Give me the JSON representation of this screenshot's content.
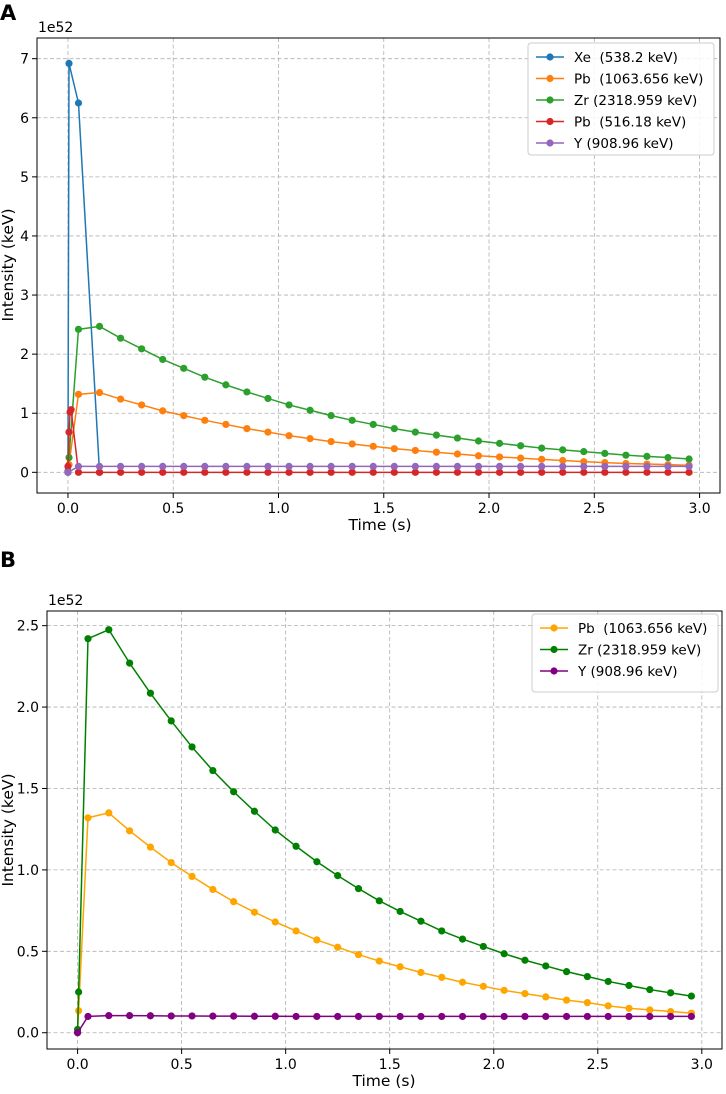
{
  "chart_data": [
    {
      "panel_label": "A",
      "type": "line",
      "marker": "circle",
      "xlabel": "Time (s)",
      "ylabel": "Intensity (keV)",
      "y_offset_text": "1e52",
      "y_scale": 1e+52,
      "xlim": [
        -0.147,
        3.097
      ],
      "ylim": [
        -0.35,
        7.35
      ],
      "xticks": [
        0.0,
        0.5,
        1.0,
        1.5,
        2.0,
        2.5,
        3.0
      ],
      "xtick_labels": [
        "0.0",
        "0.5",
        "1.0",
        "1.5",
        "2.0",
        "2.5",
        "3.0"
      ],
      "yticks": [
        0,
        1,
        2,
        3,
        4,
        5,
        6,
        7
      ],
      "ytick_labels": [
        "0",
        "1",
        "2",
        "3",
        "4",
        "5",
        "6",
        "7"
      ],
      "grid": true,
      "legend_position": "top-right",
      "series": [
        {
          "name": "Xe  (538.2 keV)",
          "color": "#1f77b4",
          "x": [
            0,
            0.005,
            0.05,
            0.15
          ],
          "y": [
            0.02,
            6.92,
            6.25,
            0.0
          ]
        },
        {
          "name": "Pb  (1063.656 keV)",
          "color": "#ff7f0e",
          "x": [
            0,
            0.005,
            0.05,
            0.15,
            0.25,
            0.35,
            0.45,
            0.55,
            0.65,
            0.75,
            0.85,
            0.95,
            1.05,
            1.15,
            1.25,
            1.35,
            1.45,
            1.55,
            1.65,
            1.75,
            1.85,
            1.95,
            2.05,
            2.15,
            2.25,
            2.35,
            2.45,
            2.55,
            2.65,
            2.75,
            2.85,
            2.95
          ],
          "y": [
            0.0,
            0.13,
            1.32,
            1.35,
            1.24,
            1.14,
            1.04,
            0.96,
            0.88,
            0.81,
            0.74,
            0.68,
            0.62,
            0.57,
            0.52,
            0.48,
            0.44,
            0.4,
            0.37,
            0.34,
            0.31,
            0.28,
            0.26,
            0.24,
            0.22,
            0.2,
            0.18,
            0.165,
            0.15,
            0.14,
            0.13,
            0.12
          ]
        },
        {
          "name": "Zr (2318.959 keV)",
          "color": "#2ca02c",
          "x": [
            0,
            0.005,
            0.05,
            0.15,
            0.25,
            0.35,
            0.45,
            0.55,
            0.65,
            0.75,
            0.85,
            0.95,
            1.05,
            1.15,
            1.25,
            1.35,
            1.45,
            1.55,
            1.65,
            1.75,
            1.85,
            1.95,
            2.05,
            2.15,
            2.25,
            2.35,
            2.45,
            2.55,
            2.65,
            2.75,
            2.85,
            2.95
          ],
          "y": [
            0.0,
            0.25,
            2.42,
            2.47,
            2.27,
            2.09,
            1.91,
            1.76,
            1.61,
            1.48,
            1.36,
            1.25,
            1.14,
            1.05,
            0.96,
            0.88,
            0.81,
            0.74,
            0.68,
            0.63,
            0.58,
            0.53,
            0.49,
            0.45,
            0.41,
            0.38,
            0.35,
            0.32,
            0.29,
            0.27,
            0.25,
            0.225
          ]
        },
        {
          "name": "Pb  (516.18 keV)",
          "color": "#d62728",
          "x": [
            0,
            0.005,
            0.01,
            0.015,
            0.05,
            0.15,
            0.25,
            0.35,
            0.45,
            0.55,
            0.65,
            0.75,
            0.85,
            0.95,
            1.05,
            1.15,
            1.25,
            1.35,
            1.45,
            1.55,
            1.65,
            1.75,
            1.85,
            1.95,
            2.05,
            2.15,
            2.25,
            2.35,
            2.45,
            2.55,
            2.65,
            2.75,
            2.85,
            2.95
          ],
          "y": [
            0.1,
            0.68,
            1.02,
            1.06,
            0.0,
            0.0,
            0.0,
            0.0,
            0.0,
            0.0,
            0.0,
            0.0,
            0.0,
            0.0,
            0.0,
            0.0,
            0.0,
            0.0,
            0.0,
            0.0,
            0.0,
            0.0,
            0.0,
            0.0,
            0.0,
            0.0,
            0.0,
            0.0,
            0.0,
            0.0,
            0.0,
            0.0,
            0.0,
            0.0
          ]
        },
        {
          "name": "Y (908.96 keV)",
          "color": "#9467bd",
          "x": [
            0,
            0.05,
            0.15,
            0.25,
            0.35,
            0.45,
            0.55,
            0.65,
            0.75,
            0.85,
            0.95,
            1.05,
            1.15,
            1.25,
            1.35,
            1.45,
            1.55,
            1.65,
            1.75,
            1.85,
            1.95,
            2.05,
            2.15,
            2.25,
            2.35,
            2.45,
            2.55,
            2.65,
            2.75,
            2.85,
            2.95
          ],
          "y": [
            0.0,
            0.1,
            0.1,
            0.1,
            0.1,
            0.1,
            0.1,
            0.1,
            0.1,
            0.1,
            0.1,
            0.1,
            0.1,
            0.1,
            0.1,
            0.1,
            0.1,
            0.1,
            0.1,
            0.1,
            0.1,
            0.1,
            0.1,
            0.1,
            0.1,
            0.1,
            0.1,
            0.1,
            0.1,
            0.1,
            0.1
          ]
        }
      ]
    },
    {
      "panel_label": "B",
      "type": "line",
      "marker": "circle",
      "xlabel": "Time (s)",
      "ylabel": "Intensity (keV)",
      "y_offset_text": "1e52",
      "y_scale": 1e+52,
      "xlim": [
        -0.147,
        3.097
      ],
      "ylim": [
        -0.1,
        2.59
      ],
      "xticks": [
        0.0,
        0.5,
        1.0,
        1.5,
        2.0,
        2.5,
        3.0
      ],
      "xtick_labels": [
        "0.0",
        "0.5",
        "1.0",
        "1.5",
        "2.0",
        "2.5",
        "3.0"
      ],
      "yticks": [
        0.0,
        0.5,
        1.0,
        1.5,
        2.0,
        2.5
      ],
      "ytick_labels": [
        "0.0",
        "0.5",
        "1.0",
        "1.5",
        "2.0",
        "2.5"
      ],
      "grid": true,
      "legend_position": "top-right",
      "series": [
        {
          "name": "Pb  (1063.656 keV)",
          "color": "#ffa500",
          "x": [
            0,
            0.005,
            0.05,
            0.15,
            0.25,
            0.35,
            0.45,
            0.55,
            0.65,
            0.75,
            0.85,
            0.95,
            1.05,
            1.15,
            1.25,
            1.35,
            1.45,
            1.55,
            1.65,
            1.75,
            1.85,
            1.95,
            2.05,
            2.15,
            2.25,
            2.35,
            2.45,
            2.55,
            2.65,
            2.75,
            2.85,
            2.95
          ],
          "y": [
            0.0,
            0.135,
            1.32,
            1.35,
            1.24,
            1.14,
            1.045,
            0.96,
            0.88,
            0.805,
            0.74,
            0.68,
            0.625,
            0.57,
            0.525,
            0.48,
            0.44,
            0.405,
            0.37,
            0.34,
            0.31,
            0.285,
            0.26,
            0.24,
            0.22,
            0.2,
            0.185,
            0.165,
            0.15,
            0.14,
            0.13,
            0.12
          ]
        },
        {
          "name": "Zr (2318.959 keV)",
          "color": "#008000",
          "x": [
            0,
            0.005,
            0.05,
            0.15,
            0.25,
            0.35,
            0.45,
            0.55,
            0.65,
            0.75,
            0.85,
            0.95,
            1.05,
            1.15,
            1.25,
            1.35,
            1.45,
            1.55,
            1.65,
            1.75,
            1.85,
            1.95,
            2.05,
            2.15,
            2.25,
            2.35,
            2.45,
            2.55,
            2.65,
            2.75,
            2.85,
            2.95
          ],
          "y": [
            0.02,
            0.25,
            2.42,
            2.475,
            2.27,
            2.085,
            1.915,
            1.755,
            1.61,
            1.48,
            1.36,
            1.245,
            1.145,
            1.05,
            0.965,
            0.885,
            0.81,
            0.745,
            0.685,
            0.625,
            0.575,
            0.53,
            0.485,
            0.445,
            0.41,
            0.375,
            0.345,
            0.315,
            0.29,
            0.265,
            0.245,
            0.225
          ]
        },
        {
          "name": "Y (908.96 keV)",
          "color": "#800080",
          "x": [
            0,
            0.05,
            0.15,
            0.25,
            0.35,
            0.45,
            0.55,
            0.65,
            0.75,
            0.85,
            0.95,
            1.05,
            1.15,
            1.25,
            1.35,
            1.45,
            1.55,
            1.65,
            1.75,
            1.85,
            1.95,
            2.05,
            2.15,
            2.25,
            2.35,
            2.45,
            2.55,
            2.65,
            2.75,
            2.85,
            2.95
          ],
          "y": [
            0.0,
            0.1,
            0.105,
            0.105,
            0.104,
            0.103,
            0.103,
            0.102,
            0.102,
            0.101,
            0.101,
            0.1,
            0.1,
            0.1,
            0.1,
            0.1,
            0.1,
            0.1,
            0.1,
            0.1,
            0.1,
            0.1,
            0.1,
            0.1,
            0.1,
            0.1,
            0.1,
            0.1,
            0.1,
            0.1,
            0.1
          ]
        }
      ]
    }
  ]
}
